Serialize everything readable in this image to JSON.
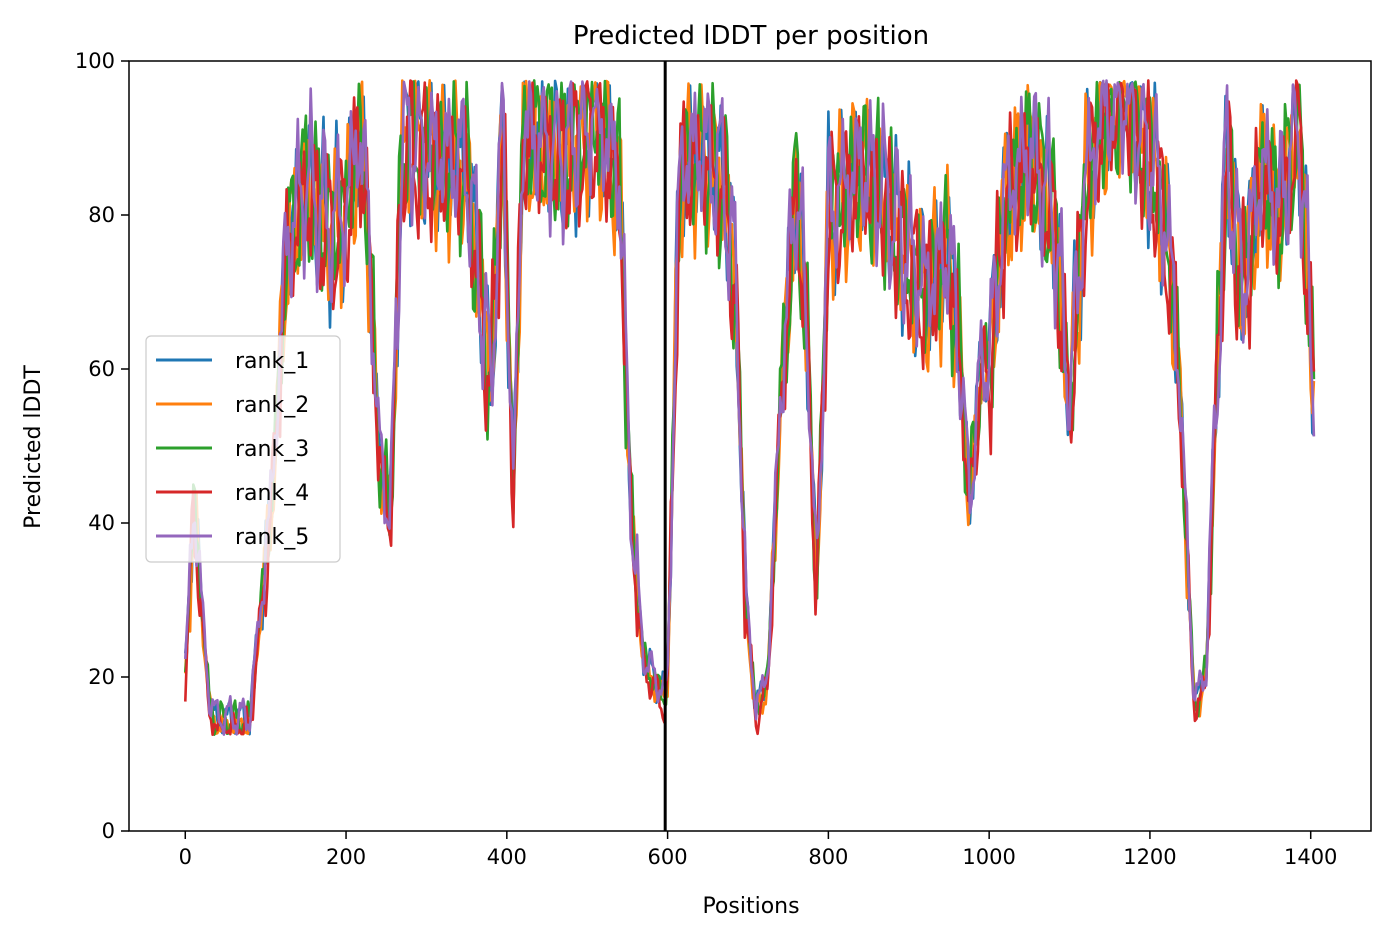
{
  "chart_data": {
    "type": "line",
    "title": "Predicted lDDT per position",
    "xlabel": "Positions",
    "ylabel": "Predicted lDDT",
    "xlim": [
      -70,
      1475
    ],
    "ylim": [
      0,
      100
    ],
    "xticks": [
      0,
      200,
      400,
      600,
      800,
      1000,
      1200,
      1400
    ],
    "yticks": [
      0,
      20,
      40,
      60,
      80,
      100
    ],
    "grid": false,
    "legend_position": "center-left",
    "chain_break": {
      "x": 597,
      "color": "#000000"
    },
    "series": [
      {
        "name": "rank_1",
        "color": "#1f77b4",
        "offset": 0.6,
        "phase": 1.1
      },
      {
        "name": "rank_2",
        "color": "#ff7f0e",
        "offset": -0.4,
        "phase": 2.3
      },
      {
        "name": "rank_3",
        "color": "#2ca02c",
        "offset": 0.3,
        "phase": 3.7
      },
      {
        "name": "rank_4",
        "color": "#d62728",
        "offset": -0.8,
        "phase": 4.9
      },
      {
        "name": "rank_5",
        "color": "#9467bd",
        "offset": 0.9,
        "phase": 0.4
      }
    ],
    "profile": [
      [
        0,
        20
      ],
      [
        10,
        42
      ],
      [
        20,
        30
      ],
      [
        30,
        16
      ],
      [
        40,
        14
      ],
      [
        80,
        14
      ],
      [
        95,
        30
      ],
      [
        105,
        40
      ],
      [
        115,
        55
      ],
      [
        125,
        75
      ],
      [
        150,
        84
      ],
      [
        180,
        78
      ],
      [
        200,
        80
      ],
      [
        215,
        90
      ],
      [
        225,
        84
      ],
      [
        240,
        50
      ],
      [
        255,
        40
      ],
      [
        270,
        90
      ],
      [
        300,
        88
      ],
      [
        350,
        86
      ],
      [
        380,
        58
      ],
      [
        395,
        92
      ],
      [
        408,
        44
      ],
      [
        420,
        90
      ],
      [
        470,
        88
      ],
      [
        510,
        92
      ],
      [
        540,
        85
      ],
      [
        555,
        40
      ],
      [
        570,
        22
      ],
      [
        590,
        18
      ],
      [
        597,
        17
      ],
      [
        600,
        20
      ],
      [
        615,
        86
      ],
      [
        640,
        88
      ],
      [
        670,
        84
      ],
      [
        685,
        70
      ],
      [
        697,
        30
      ],
      [
        710,
        15
      ],
      [
        725,
        20
      ],
      [
        740,
        55
      ],
      [
        760,
        84
      ],
      [
        775,
        62
      ],
      [
        785,
        30
      ],
      [
        800,
        80
      ],
      [
        840,
        86
      ],
      [
        870,
        82
      ],
      [
        900,
        74
      ],
      [
        920,
        70
      ],
      [
        950,
        75
      ],
      [
        965,
        60
      ],
      [
        975,
        42
      ],
      [
        990,
        60
      ],
      [
        1000,
        60
      ],
      [
        1020,
        82
      ],
      [
        1050,
        88
      ],
      [
        1080,
        80
      ],
      [
        1100,
        55
      ],
      [
        1120,
        84
      ],
      [
        1140,
        92
      ],
      [
        1170,
        96
      ],
      [
        1190,
        90
      ],
      [
        1210,
        84
      ],
      [
        1230,
        70
      ],
      [
        1245,
        40
      ],
      [
        1255,
        16
      ],
      [
        1270,
        20
      ],
      [
        1280,
        50
      ],
      [
        1295,
        88
      ],
      [
        1315,
        70
      ],
      [
        1340,
        86
      ],
      [
        1360,
        80
      ],
      [
        1385,
        92
      ],
      [
        1405,
        55
      ]
    ]
  }
}
